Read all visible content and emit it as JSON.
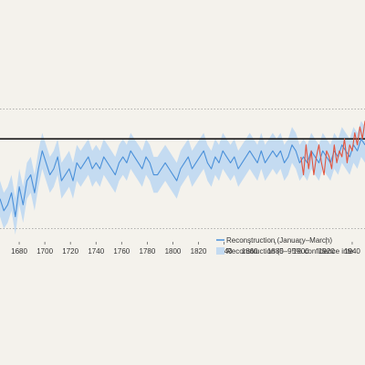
{
  "chart_data": {
    "type": "line",
    "title": "",
    "xlabel": "",
    "ylabel": "",
    "xlim": [
      1665,
      1950
    ],
    "ylim": [
      -1.6,
      1.6
    ],
    "x_ticks": [
      1680,
      1700,
      1720,
      1740,
      1760,
      1780,
      1800,
      1820,
      1840,
      1860,
      1880,
      1900,
      1920,
      1940
    ],
    "x_tick_labels": [
      "1680",
      "1700",
      "1720",
      "1740",
      "1760",
      "1780",
      "1800",
      "1820",
      "1840",
      "1860",
      "1880",
      "1900",
      "1920",
      "1940"
    ],
    "gridlines_dotted_y": [
      1.0,
      -1.0
    ],
    "reference_line_y": 0.5,
    "grid": "dotted horizontal lines only",
    "legend_position": "lower-right",
    "colors": {
      "reconstruction": "#4a90d9",
      "confidence_band": "#c4dbf1",
      "instrumental": "#e2553f",
      "reference_line": "#1a1a1a",
      "background": "#f4f2ec"
    },
    "series": [
      {
        "name": "Reconstruction (January–March)",
        "kind": "line",
        "x": [
          1665,
          1668,
          1671,
          1674,
          1677,
          1680,
          1683,
          1686,
          1689,
          1692,
          1695,
          1698,
          1701,
          1704,
          1707,
          1710,
          1713,
          1716,
          1719,
          1722,
          1725,
          1728,
          1731,
          1734,
          1737,
          1740,
          1743,
          1746,
          1749,
          1752,
          1755,
          1758,
          1761,
          1764,
          1767,
          1770,
          1773,
          1776,
          1779,
          1782,
          1785,
          1788,
          1791,
          1794,
          1797,
          1800,
          1803,
          1806,
          1809,
          1812,
          1815,
          1818,
          1821,
          1824,
          1827,
          1830,
          1833,
          1836,
          1839,
          1842,
          1845,
          1848,
          1851,
          1854,
          1857,
          1860,
          1863,
          1866,
          1869,
          1872,
          1875,
          1878,
          1881,
          1884,
          1887,
          1890,
          1893,
          1896,
          1899,
          1902,
          1905,
          1908,
          1911,
          1914,
          1917,
          1920,
          1923,
          1926,
          1929,
          1932,
          1935,
          1938,
          1941,
          1944,
          1947,
          1950
        ],
        "values": [
          -0.5,
          -0.7,
          -0.6,
          -0.4,
          -0.8,
          -0.3,
          -0.6,
          -0.2,
          -0.1,
          -0.4,
          0.0,
          0.3,
          0.1,
          -0.1,
          0.0,
          0.2,
          -0.2,
          -0.1,
          0.0,
          -0.2,
          0.1,
          0.0,
          0.1,
          0.2,
          0.0,
          0.1,
          0.0,
          0.2,
          0.1,
          0.0,
          -0.1,
          0.1,
          0.2,
          0.1,
          0.3,
          0.2,
          0.1,
          0.0,
          0.2,
          0.1,
          -0.1,
          -0.1,
          0.0,
          0.1,
          0.0,
          -0.1,
          -0.2,
          0.0,
          0.1,
          0.2,
          0.0,
          0.1,
          0.2,
          0.3,
          0.1,
          0.0,
          0.2,
          0.1,
          0.3,
          0.2,
          0.1,
          0.2,
          0.0,
          0.1,
          0.2,
          0.3,
          0.2,
          0.1,
          0.3,
          0.1,
          0.2,
          0.3,
          0.2,
          0.3,
          0.1,
          0.2,
          0.4,
          0.3,
          0.1,
          0.2,
          0.1,
          0.3,
          0.2,
          0.1,
          0.3,
          0.2,
          0.1,
          0.3,
          0.2,
          0.4,
          0.3,
          0.2,
          0.4,
          0.3,
          0.5,
          0.4
        ]
      },
      {
        "name": "Reconstruction (5–95% confidence inte",
        "kind": "band",
        "x": [
          1665,
          1668,
          1671,
          1674,
          1677,
          1680,
          1683,
          1686,
          1689,
          1692,
          1695,
          1698,
          1701,
          1704,
          1707,
          1710,
          1713,
          1716,
          1719,
          1722,
          1725,
          1728,
          1731,
          1734,
          1737,
          1740,
          1743,
          1746,
          1749,
          1752,
          1755,
          1758,
          1761,
          1764,
          1767,
          1770,
          1773,
          1776,
          1779,
          1782,
          1785,
          1788,
          1791,
          1794,
          1797,
          1800,
          1803,
          1806,
          1809,
          1812,
          1815,
          1818,
          1821,
          1824,
          1827,
          1830,
          1833,
          1836,
          1839,
          1842,
          1845,
          1848,
          1851,
          1854,
          1857,
          1860,
          1863,
          1866,
          1869,
          1872,
          1875,
          1878,
          1881,
          1884,
          1887,
          1890,
          1893,
          1896,
          1899,
          1902,
          1905,
          1908,
          1911,
          1914,
          1917,
          1920,
          1923,
          1926,
          1929,
          1932,
          1935,
          1938,
          1941,
          1944,
          1947,
          1950
        ],
        "lower": [
          -0.8,
          -1.0,
          -0.9,
          -0.7,
          -1.1,
          -0.6,
          -0.9,
          -0.5,
          -0.4,
          -0.7,
          -0.3,
          0.0,
          -0.2,
          -0.4,
          -0.3,
          -0.1,
          -0.5,
          -0.4,
          -0.3,
          -0.5,
          -0.2,
          -0.3,
          -0.2,
          -0.1,
          -0.3,
          -0.2,
          -0.3,
          -0.1,
          -0.2,
          -0.3,
          -0.4,
          -0.2,
          -0.1,
          -0.2,
          0.0,
          -0.1,
          -0.2,
          -0.3,
          -0.1,
          -0.2,
          -0.4,
          -0.4,
          -0.3,
          -0.2,
          -0.3,
          -0.4,
          -0.5,
          -0.3,
          -0.2,
          -0.1,
          -0.3,
          -0.2,
          -0.1,
          0.0,
          -0.2,
          -0.3,
          -0.1,
          -0.2,
          0.0,
          -0.1,
          -0.2,
          -0.1,
          -0.3,
          -0.2,
          -0.1,
          0.0,
          -0.1,
          -0.2,
          0.0,
          -0.2,
          -0.1,
          0.0,
          -0.1,
          0.0,
          -0.2,
          -0.1,
          0.1,
          0.0,
          -0.2,
          -0.1,
          -0.2,
          0.0,
          -0.1,
          -0.2,
          0.0,
          -0.1,
          -0.2,
          0.0,
          -0.1,
          0.1,
          0.0,
          -0.1,
          0.1,
          0.0,
          0.2,
          0.1
        ],
        "upper": [
          -0.2,
          -0.4,
          -0.3,
          -0.1,
          -0.5,
          0.0,
          -0.3,
          0.1,
          0.2,
          -0.1,
          0.3,
          0.6,
          0.4,
          0.2,
          0.3,
          0.5,
          0.1,
          0.2,
          0.3,
          0.1,
          0.4,
          0.3,
          0.4,
          0.5,
          0.3,
          0.4,
          0.3,
          0.5,
          0.4,
          0.3,
          0.2,
          0.4,
          0.5,
          0.4,
          0.6,
          0.5,
          0.4,
          0.3,
          0.5,
          0.4,
          0.2,
          0.2,
          0.3,
          0.4,
          0.3,
          0.2,
          0.1,
          0.3,
          0.4,
          0.5,
          0.3,
          0.4,
          0.5,
          0.6,
          0.4,
          0.3,
          0.5,
          0.4,
          0.6,
          0.5,
          0.4,
          0.5,
          0.3,
          0.4,
          0.5,
          0.6,
          0.5,
          0.4,
          0.6,
          0.4,
          0.5,
          0.6,
          0.5,
          0.6,
          0.4,
          0.5,
          0.7,
          0.6,
          0.4,
          0.5,
          0.4,
          0.6,
          0.5,
          0.4,
          0.6,
          0.5,
          0.4,
          0.6,
          0.5,
          0.7,
          0.6,
          0.5,
          0.7,
          0.6,
          0.8,
          0.7
        ]
      },
      {
        "name": "",
        "kind": "line",
        "x": [
          1900,
          1902,
          1904,
          1906,
          1908,
          1910,
          1912,
          1914,
          1916,
          1918,
          1920,
          1922,
          1924,
          1926,
          1928,
          1930,
          1932,
          1934,
          1936,
          1938,
          1940,
          1942,
          1944,
          1946,
          1948,
          1950
        ],
        "values": [
          0.2,
          -0.1,
          0.4,
          0.0,
          0.3,
          -0.1,
          0.2,
          0.4,
          0.1,
          -0.1,
          0.3,
          0.2,
          0.0,
          0.4,
          0.1,
          0.3,
          0.2,
          0.5,
          0.1,
          0.4,
          0.3,
          0.6,
          0.4,
          0.7,
          0.5,
          0.8
        ]
      }
    ],
    "legend": [
      {
        "label": "Reconstruction (January–March)",
        "symbol": "line"
      },
      {
        "label": "Reconstruction (5–95% confidence inte",
        "symbol": "band"
      }
    ]
  }
}
